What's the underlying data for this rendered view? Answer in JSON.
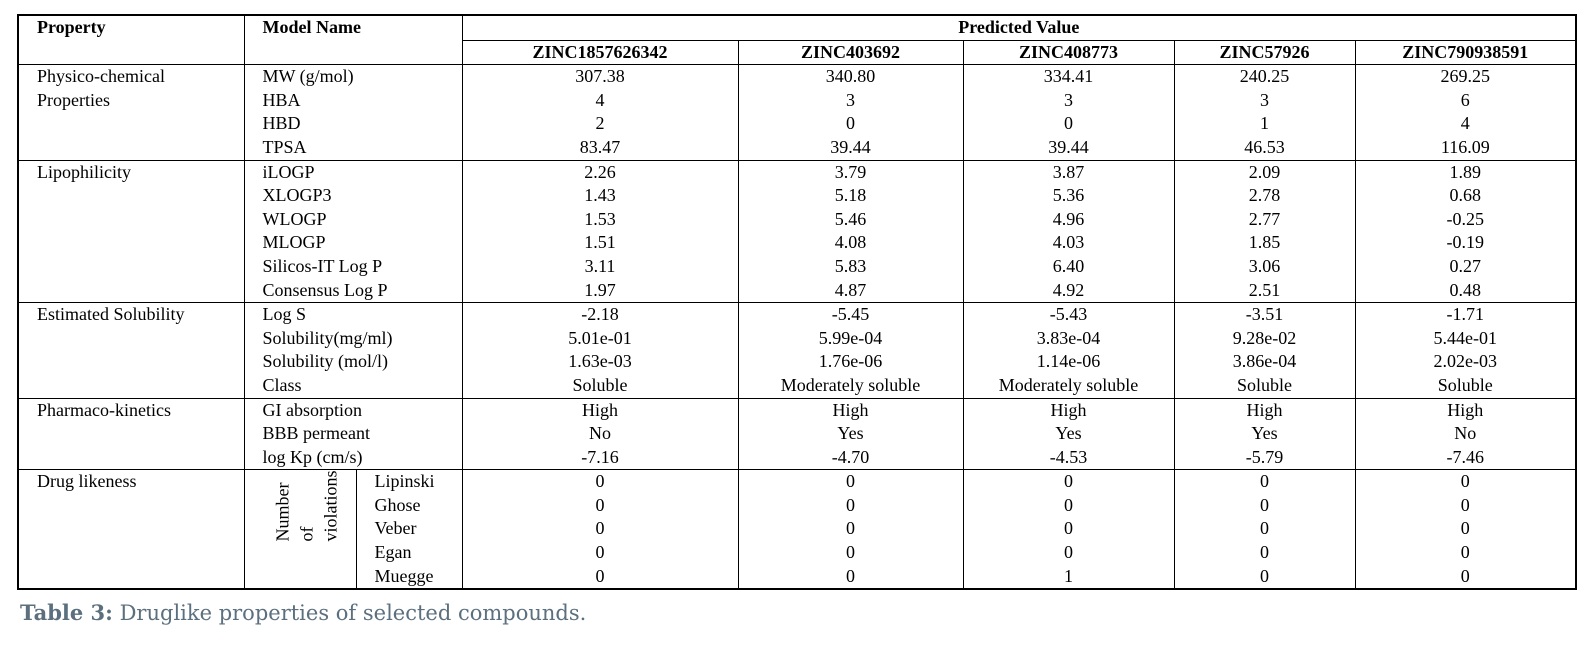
{
  "header": {
    "property": "Property",
    "model_name": "Model Name",
    "predicted_value": "Predicted Value",
    "compounds": [
      "ZINC1857626342",
      "ZINC403692",
      "ZINC408773",
      "ZINC57926",
      "ZINC790938591"
    ]
  },
  "groups": {
    "physico": {
      "label": "Physico-chemical Properties",
      "rows": [
        {
          "model": "MW (g/mol)",
          "values": [
            "307.38",
            "340.80",
            "334.41",
            "240.25",
            "269.25"
          ]
        },
        {
          "model": "HBA",
          "values": [
            "4",
            "3",
            "3",
            "3",
            "6"
          ]
        },
        {
          "model": "HBD",
          "values": [
            "2",
            "0",
            "0",
            "1",
            "4"
          ]
        },
        {
          "model": "TPSA",
          "values": [
            "83.47",
            "39.44",
            "39.44",
            "46.53",
            "116.09"
          ]
        }
      ]
    },
    "lipo": {
      "label": "Lipophilicity",
      "rows": [
        {
          "model": "iLOGP",
          "values": [
            "2.26",
            "3.79",
            "3.87",
            "2.09",
            "1.89"
          ]
        },
        {
          "model": "XLOGP3",
          "values": [
            "1.43",
            "5.18",
            "5.36",
            "2.78",
            "0.68"
          ]
        },
        {
          "model": "WLOGP",
          "values": [
            "1.53",
            "5.46",
            "4.96",
            "2.77",
            "-0.25"
          ]
        },
        {
          "model": "MLOGP",
          "values": [
            "1.51",
            "4.08",
            "4.03",
            "1.85",
            "-0.19"
          ]
        },
        {
          "model": "Silicos-IT Log P",
          "values": [
            "3.11",
            "5.83",
            "6.40",
            "3.06",
            "0.27"
          ]
        },
        {
          "model": "Consensus Log P",
          "values": [
            "1.97",
            "4.87",
            "4.92",
            "2.51",
            "0.48"
          ]
        }
      ]
    },
    "solub": {
      "label": "Estimated Solubility",
      "rows": [
        {
          "model": "Log S",
          "values": [
            "-2.18",
            "-5.45",
            "-5.43",
            "-3.51",
            "-1.71"
          ]
        },
        {
          "model": "Solubility(mg/ml)",
          "values": [
            "5.01e-01",
            "5.99e-04",
            "3.83e-04",
            "9.28e-02",
            "5.44e-01"
          ]
        },
        {
          "model": "Solubility (mol/l)",
          "values": [
            "1.63e-03",
            "1.76e-06",
            "1.14e-06",
            "3.86e-04",
            "2.02e-03"
          ]
        },
        {
          "model": "Class",
          "values": [
            "Soluble",
            "Moderately soluble",
            "Moderately soluble",
            "Soluble",
            "Soluble"
          ]
        }
      ]
    },
    "pharma": {
      "label": "Pharmaco-kinetics",
      "rows": [
        {
          "model": "GI absorption",
          "values": [
            "High",
            "High",
            "High",
            "High",
            "High"
          ]
        },
        {
          "model": "BBB permeant",
          "values": [
            "No",
            "Yes",
            "Yes",
            "Yes",
            "No"
          ]
        },
        {
          "model": "log Kp (cm/s)",
          "values": [
            "-7.16",
            "-4.70",
            "-4.53",
            "-5.79",
            "-7.46"
          ]
        }
      ]
    },
    "drug": {
      "label": "Drug likeness",
      "violations_label": "Number\nof\nviolations",
      "rows": [
        {
          "model": "Lipinski",
          "values": [
            "0",
            "0",
            "0",
            "0",
            "0"
          ]
        },
        {
          "model": "Ghose",
          "values": [
            "0",
            "0",
            "0",
            "0",
            "0"
          ]
        },
        {
          "model": "Veber",
          "values": [
            "0",
            "0",
            "0",
            "0",
            "0"
          ]
        },
        {
          "model": "Egan",
          "values": [
            "0",
            "0",
            "0",
            "0",
            "0"
          ]
        },
        {
          "model": "Muegge",
          "values": [
            "0",
            "0",
            "1",
            "0",
            "0"
          ]
        }
      ]
    }
  },
  "caption": {
    "label": "Table 3:",
    "text": " Druglike properties of selected compounds."
  }
}
